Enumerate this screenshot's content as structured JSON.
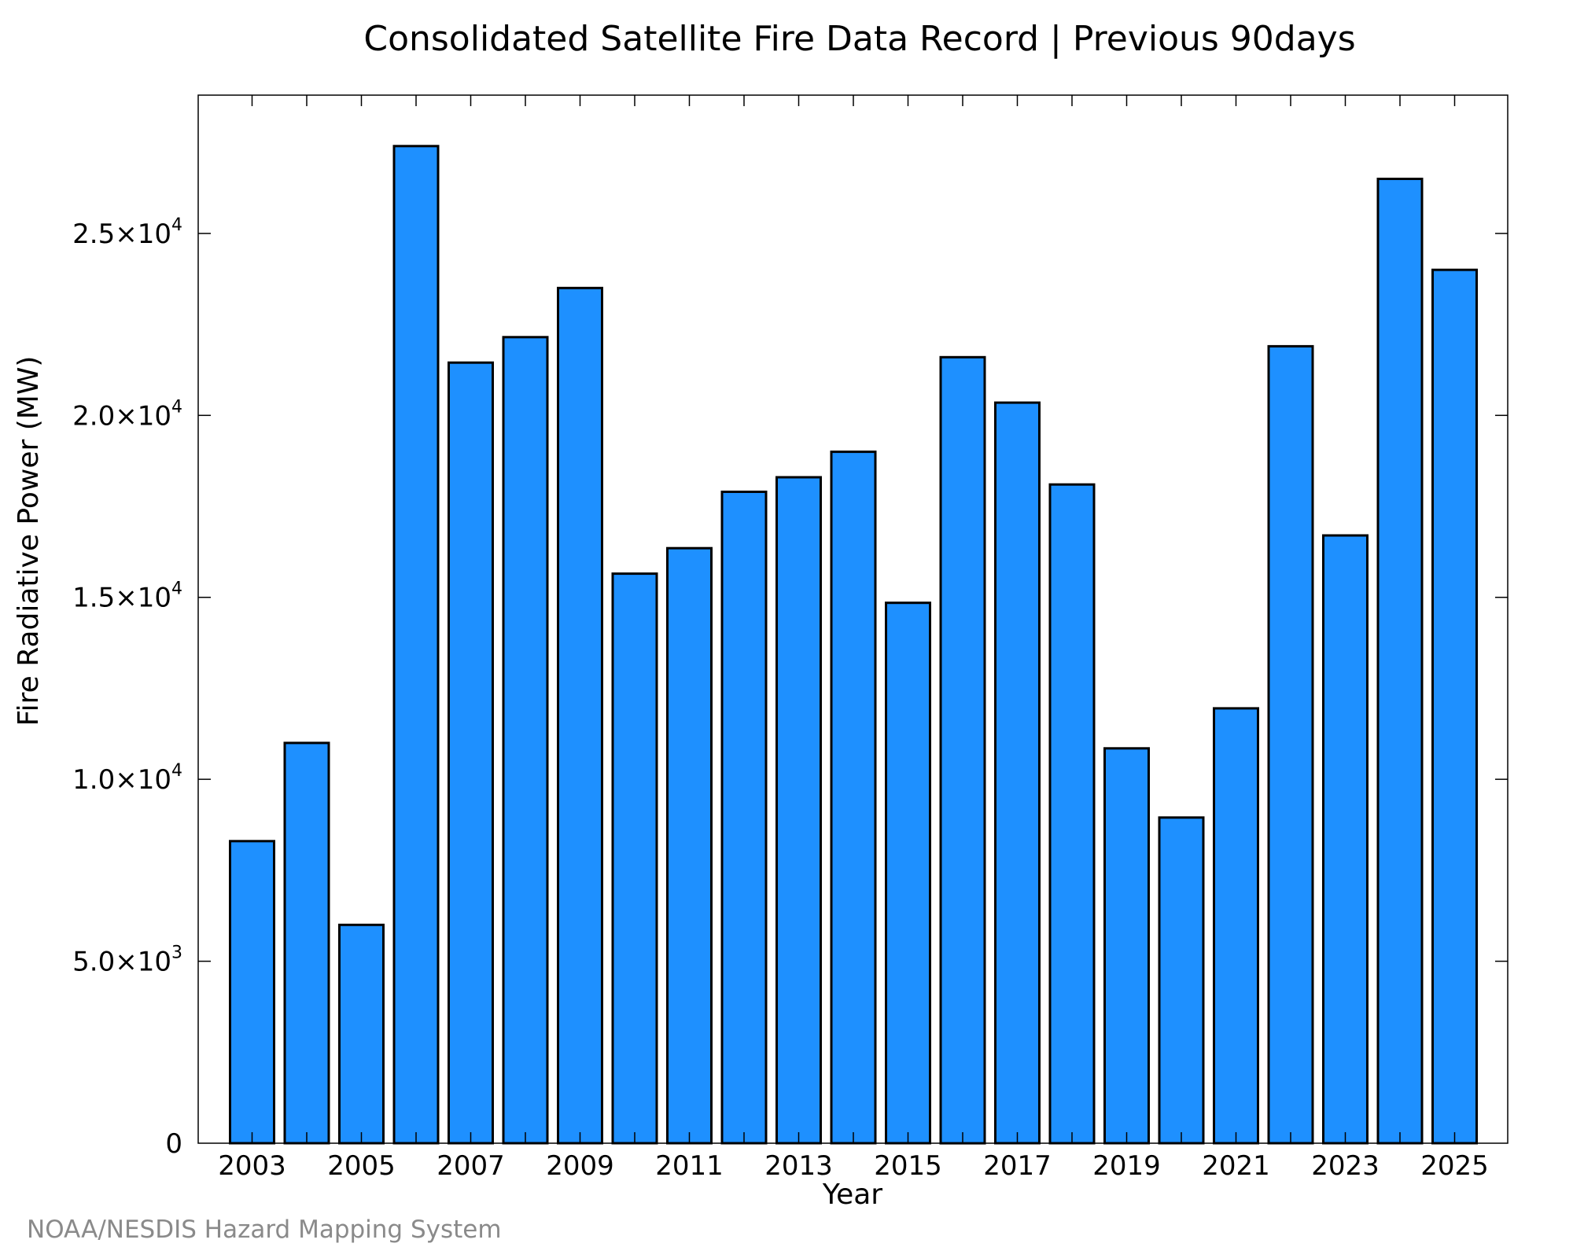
{
  "chart_data": {
    "type": "bar",
    "title": "Consolidated Satellite Fire Data Record | Previous 90days",
    "xlabel": "Year",
    "ylabel": "Fire Radiative Power (MW)",
    "categories": [
      "2003",
      "2004",
      "2005",
      "2006",
      "2007",
      "2008",
      "2009",
      "2010",
      "2011",
      "2012",
      "2013",
      "2014",
      "2015",
      "2016",
      "2017",
      "2018",
      "2019",
      "2020",
      "2021",
      "2022",
      "2023",
      "2024",
      "2025"
    ],
    "values": [
      8300,
      11000,
      6000,
      27400,
      21450,
      22150,
      23500,
      15650,
      16350,
      17900,
      18300,
      19000,
      14850,
      21600,
      20350,
      18100,
      10850,
      8950,
      11950,
      21900,
      16700,
      26500,
      24000
    ],
    "ylim": [
      0,
      28800
    ],
    "y_ticks": [
      {
        "value": 0,
        "mantissa": "0",
        "exponent": ""
      },
      {
        "value": 5000,
        "mantissa": "5.0×10",
        "exponent": "3"
      },
      {
        "value": 10000,
        "mantissa": "1.0×10",
        "exponent": "4"
      },
      {
        "value": 15000,
        "mantissa": "1.5×10",
        "exponent": "4"
      },
      {
        "value": 20000,
        "mantissa": "2.0×10",
        "exponent": "4"
      },
      {
        "value": 25000,
        "mantissa": "2.5×10",
        "exponent": "4"
      }
    ],
    "x_tick_labels": [
      "2003",
      "2005",
      "2007",
      "2009",
      "2011",
      "2013",
      "2015",
      "2017",
      "2019",
      "2021",
      "2023",
      "2025"
    ],
    "bar_color": "#1e90ff",
    "bar_edge_color": "#000000",
    "grid": false,
    "legend": "none"
  },
  "credit": "NOAA/NESDIS Hazard Mapping System"
}
